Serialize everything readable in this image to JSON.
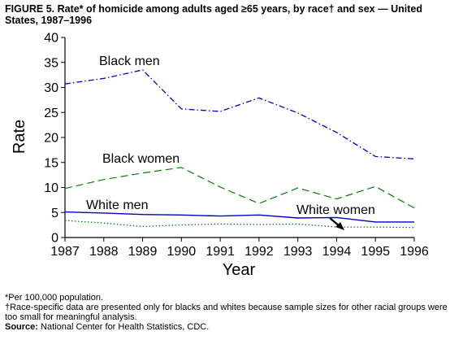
{
  "title": "FIGURE 5. Rate* of homicide among adults aged ≥65 years, by race† and sex — United States, 1987–1996",
  "footnotes": {
    "per": "*Per 100,000 population.",
    "race": "†Race-specific data are presented only for blacks and whites because sample sizes for other racial groups were too small for meaningful analysis.",
    "source_label": "Source:",
    "source_text": " National Center for Health Statistics, CDC."
  },
  "chart_data": {
    "type": "line",
    "xlabel": "Year",
    "ylabel": "Rate",
    "x": [
      1987,
      1988,
      1989,
      1990,
      1991,
      1992,
      1993,
      1994,
      1995,
      1996
    ],
    "xlim": [
      1987,
      1996
    ],
    "ylim": [
      0,
      40
    ],
    "yticks": [
      0,
      5,
      10,
      15,
      20,
      25,
      30,
      35,
      40
    ],
    "grid": false,
    "series": [
      {
        "name": "Black men",
        "color": "#0000c8",
        "dash": "dashdot",
        "values": [
          30.7,
          31.8,
          33.5,
          25.7,
          25.2,
          27.9,
          24.9,
          21.0,
          16.2,
          15.7
        ]
      },
      {
        "name": "Black women",
        "color": "#008000",
        "dash": "dashed",
        "values": [
          9.8,
          11.6,
          12.9,
          14.0,
          10.1,
          6.8,
          9.9,
          7.7,
          10.2,
          5.9
        ]
      },
      {
        "name": "White men",
        "color": "#0000c8",
        "dash": "solid",
        "values": [
          5.1,
          4.9,
          4.6,
          4.5,
          4.3,
          4.5,
          3.9,
          4.0,
          3.1,
          3.1
        ]
      },
      {
        "name": "White women",
        "color": "#008000",
        "dash": "dotted",
        "values": [
          3.4,
          2.9,
          2.2,
          2.5,
          2.7,
          2.6,
          2.7,
          2.1,
          2.1,
          2.0
        ]
      }
    ]
  }
}
